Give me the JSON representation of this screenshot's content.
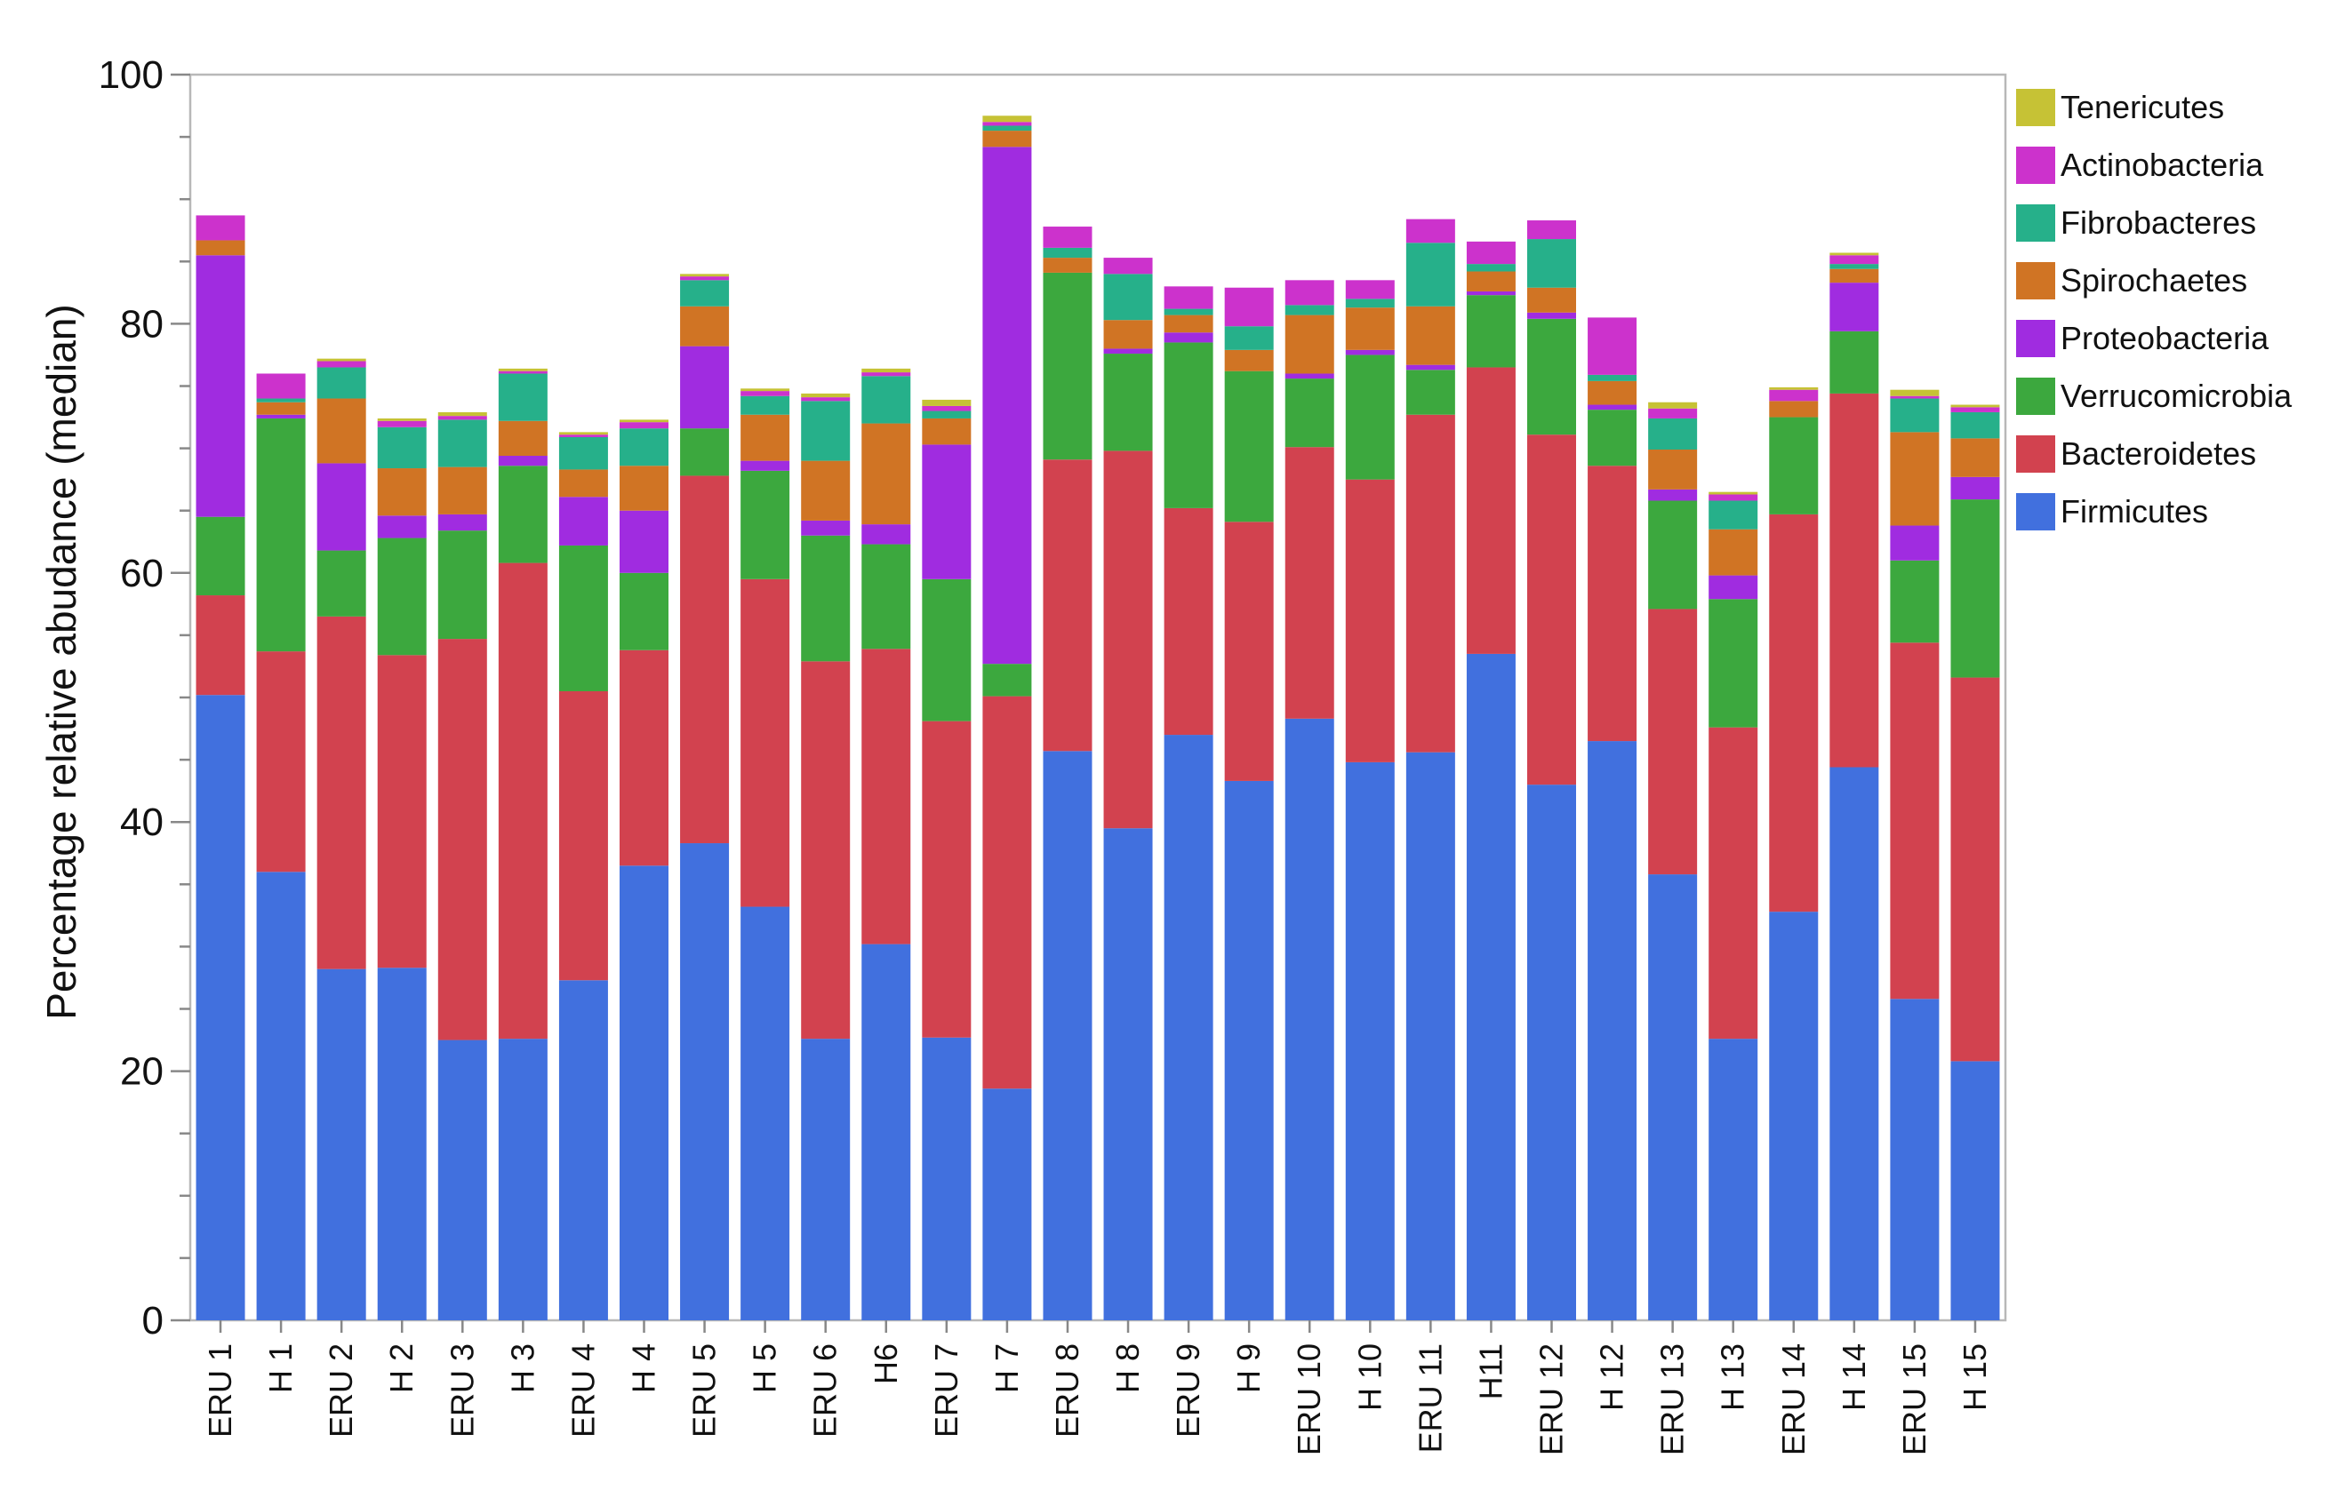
{
  "chart_data": {
    "type": "stacked-bar",
    "title": "",
    "xlabel": "",
    "ylabel": "Percentage relative abudance (median)",
    "ylim": [
      0,
      100
    ],
    "yticks": [
      0,
      20,
      40,
      60,
      80,
      100
    ],
    "legend_position": "right",
    "categories": [
      "ERU 1",
      "H 1",
      "ERU 2",
      "H 2",
      "ERU 3",
      "H 3",
      "ERU 4",
      "H 4",
      "ERU 5",
      "H 5",
      "ERU 6",
      "H6",
      "ERU 7",
      "H 7",
      "ERU 8",
      "H 8",
      "ERU 9",
      "H 9",
      "ERU 10",
      "H 10",
      "ERU 11",
      "H11",
      "ERU 12",
      "H 12",
      "ERU 13",
      "H 13",
      "ERU 14",
      "H 14",
      "ERU 15",
      "H 15"
    ],
    "series": [
      {
        "name": "Firmicutes",
        "color": "#4170DE",
        "values": [
          50.2,
          36.0,
          28.2,
          28.3,
          22.5,
          22.6,
          27.3,
          36.5,
          38.3,
          33.2,
          22.6,
          30.2,
          22.7,
          18.6,
          45.7,
          39.5,
          47.0,
          43.3,
          48.3,
          44.8,
          45.6,
          53.5,
          43.0,
          46.5,
          35.8,
          22.6,
          32.8,
          44.4,
          25.8,
          20.8
        ]
      },
      {
        "name": "Bacteroidetes",
        "color": "#D2424F",
        "values": [
          8.0,
          17.7,
          28.3,
          25.1,
          32.2,
          38.2,
          23.2,
          17.3,
          29.5,
          26.3,
          30.3,
          23.7,
          25.4,
          31.5,
          23.4,
          30.3,
          18.2,
          20.8,
          21.8,
          22.7,
          27.1,
          23.0,
          28.1,
          22.1,
          21.3,
          25.0,
          31.9,
          30.0,
          28.6,
          30.8
        ]
      },
      {
        "name": "Verrucomicrobia",
        "color": "#3CA83E",
        "values": [
          6.3,
          18.7,
          5.3,
          9.4,
          8.7,
          7.8,
          11.7,
          6.2,
          3.8,
          8.7,
          10.1,
          8.4,
          11.4,
          2.6,
          15.0,
          7.8,
          13.3,
          12.1,
          5.5,
          10.0,
          3.6,
          5.8,
          9.3,
          4.5,
          8.7,
          10.3,
          7.8,
          5.0,
          6.6,
          14.3
        ]
      },
      {
        "name": "Proteobacteria",
        "color": "#A02CE0",
        "values": [
          21.0,
          0.3,
          7.0,
          1.8,
          1.3,
          0.8,
          3.9,
          5.0,
          6.6,
          0.8,
          1.2,
          1.6,
          10.8,
          41.5,
          0.0,
          0.4,
          0.8,
          0.0,
          0.4,
          0.4,
          0.4,
          0.3,
          0.5,
          0.4,
          0.9,
          1.9,
          0.0,
          3.9,
          2.8,
          1.8
        ]
      },
      {
        "name": "Spirochaetes",
        "color": "#D07424",
        "values": [
          1.2,
          1.0,
          5.2,
          3.8,
          3.8,
          2.8,
          2.2,
          3.6,
          3.2,
          3.7,
          4.8,
          8.1,
          2.1,
          1.3,
          1.2,
          2.3,
          1.4,
          1.7,
          4.7,
          3.4,
          4.7,
          1.6,
          2.0,
          1.9,
          3.2,
          3.7,
          1.3,
          1.1,
          7.5,
          3.1
        ]
      },
      {
        "name": "Fibrobacteres",
        "color": "#26B08A",
        "values": [
          0.0,
          0.3,
          2.5,
          3.3,
          3.8,
          3.8,
          2.6,
          3.0,
          2.1,
          1.5,
          4.8,
          3.8,
          0.6,
          0.4,
          0.8,
          3.7,
          0.5,
          1.9,
          0.8,
          0.7,
          5.1,
          0.6,
          3.9,
          0.5,
          2.5,
          2.3,
          0.0,
          0.4,
          2.7,
          2.1
        ]
      },
      {
        "name": "Actinobacteria",
        "color": "#CC32CC",
        "values": [
          2.0,
          2.0,
          0.5,
          0.5,
          0.3,
          0.2,
          0.2,
          0.5,
          0.3,
          0.4,
          0.3,
          0.3,
          0.4,
          0.3,
          1.7,
          1.3,
          1.8,
          3.1,
          2.0,
          1.5,
          1.9,
          1.8,
          1.5,
          4.6,
          0.8,
          0.5,
          0.9,
          0.7,
          0.2,
          0.4
        ]
      },
      {
        "name": "Tenericutes",
        "color": "#C6C235",
        "values": [
          0.0,
          0.0,
          0.2,
          0.2,
          0.3,
          0.2,
          0.2,
          0.2,
          0.2,
          0.2,
          0.3,
          0.3,
          0.5,
          0.5,
          0.0,
          0.0,
          0.0,
          0.0,
          0.0,
          0.0,
          0.0,
          0.0,
          0.0,
          0.0,
          0.5,
          0.2,
          0.2,
          0.2,
          0.5,
          0.2
        ]
      }
    ]
  }
}
